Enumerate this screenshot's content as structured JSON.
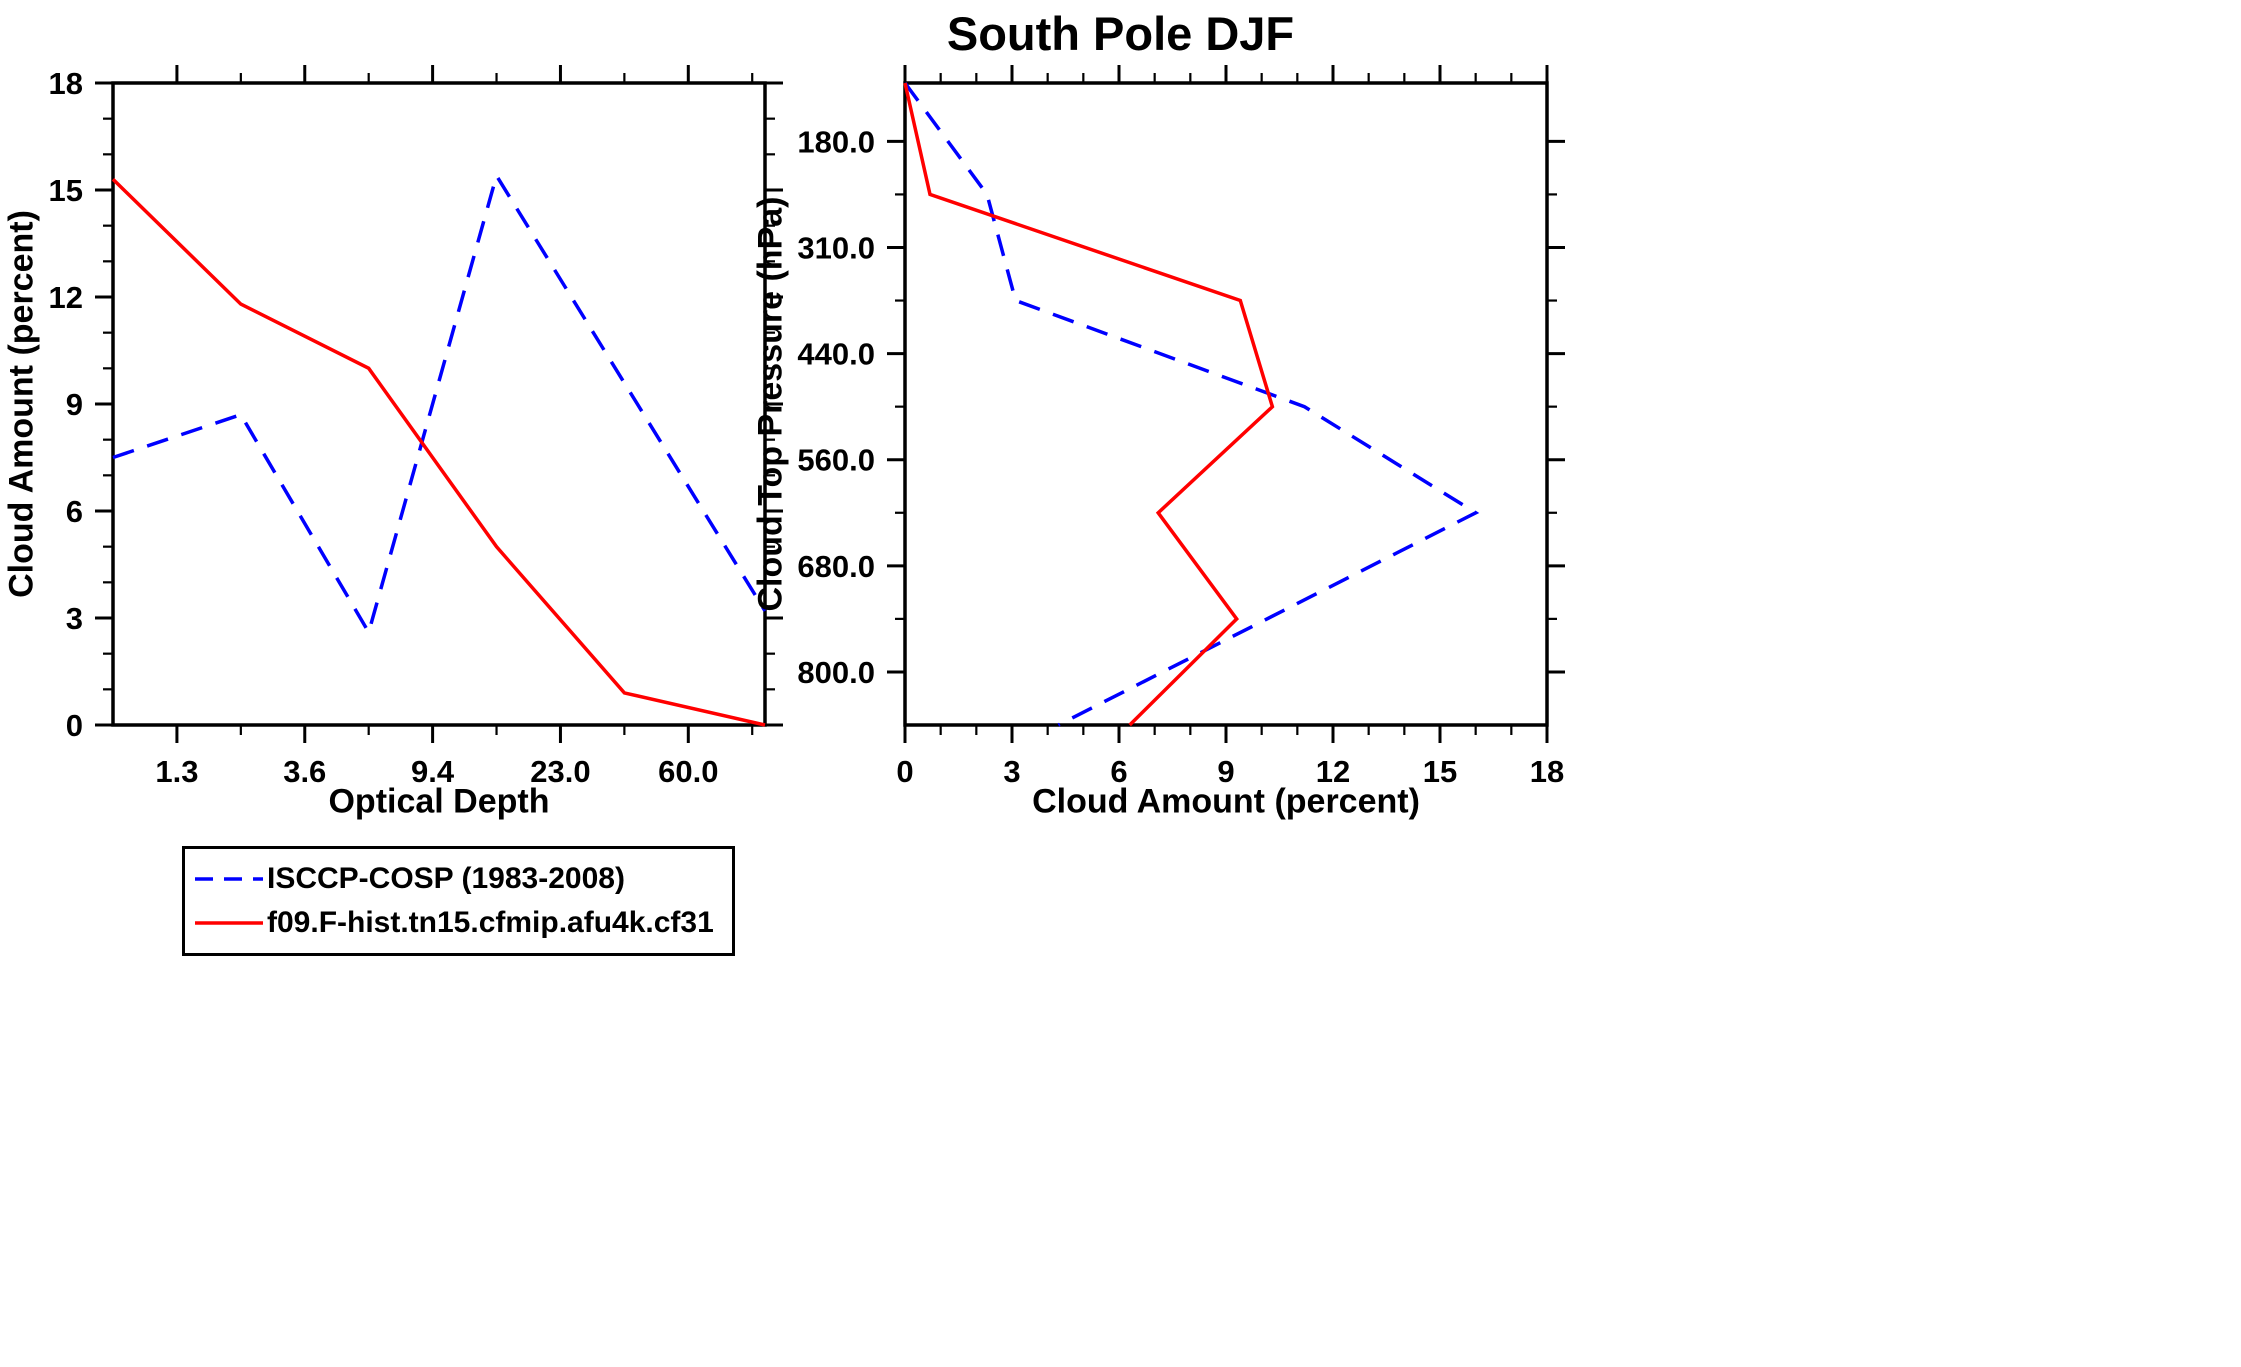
{
  "title": "South Pole DJF",
  "colors": {
    "blue": "#0000ff",
    "red": "#ff0000",
    "axis": "#000000",
    "background": "#ffffff"
  },
  "legend": {
    "entries": [
      {
        "label": "ISCCP-COSP (1983-2008)",
        "color": "#0000ff",
        "line_style": "dashed",
        "dash_pattern": "18 11"
      },
      {
        "label": "f09.F-hist.tn15.cfmip.afu4k.cf31",
        "color": "#ff0000",
        "line_style": "solid",
        "dash_pattern": "none"
      }
    ]
  },
  "chart_data": [
    {
      "type": "line",
      "panel": "left",
      "xlabel": "Optical Depth",
      "ylabel": "Cloud Amount (percent)",
      "x_axis": {
        "kind": "isccp-optical-depth-bins",
        "range": [
          0.5,
          5.6
        ],
        "tick_positions": [
          1,
          2,
          3,
          4,
          5
        ],
        "tick_labels": [
          "1.3",
          "3.6",
          "9.4",
          "23.0",
          "60.0"
        ],
        "minor_positions": [
          1.5,
          2.5,
          3.5,
          4.5,
          5.5
        ],
        "note": "ticks mark ISCCP optical-depth bin boundaries; data points plotted at bin centers"
      },
      "y_axis": {
        "range": [
          0,
          18
        ],
        "tick_positions": [
          0,
          3,
          6,
          9,
          12,
          15,
          18
        ],
        "tick_labels": [
          "0",
          "3",
          "6",
          "9",
          "12",
          "15",
          "18"
        ],
        "minor_positions": [
          1,
          2,
          4,
          5,
          7,
          8,
          10,
          11,
          13,
          14,
          16,
          17
        ],
        "inverted": false
      },
      "series": [
        {
          "name": "ISCCP-COSP (1983-2008)",
          "color": "#0000ff",
          "style": "dashed",
          "x": [
            0.5,
            1.5,
            2.5,
            3.5,
            5.6
          ],
          "y": [
            7.5,
            8.7,
            2.6,
            15.4,
            3.2
          ]
        },
        {
          "name": "f09.F-hist.tn15.cfmip.afu4k.cf31",
          "color": "#ff0000",
          "style": "solid",
          "x": [
            0.5,
            1.5,
            2.5,
            3.5,
            4.5,
            5.6
          ],
          "y": [
            15.3,
            11.8,
            10.0,
            5.0,
            0.9,
            0.0
          ]
        }
      ]
    },
    {
      "type": "line",
      "panel": "right",
      "xlabel": "Cloud Amount (percent)",
      "ylabel": "Cloud Top Pressure (hPa)",
      "x_axis": {
        "range": [
          0,
          18
        ],
        "tick_positions": [
          0,
          3,
          6,
          9,
          12,
          15,
          18
        ],
        "tick_labels": [
          "0",
          "3",
          "6",
          "9",
          "12",
          "15",
          "18"
        ],
        "minor_positions": [
          1,
          2,
          4,
          5,
          7,
          8,
          10,
          11,
          13,
          14,
          16,
          17
        ]
      },
      "y_axis": {
        "kind": "isccp-cloud-top-pressure-bins",
        "range": [
          0.45,
          6.5
        ],
        "tick_positions": [
          1,
          2,
          3,
          4,
          5,
          6
        ],
        "tick_labels": [
          "180.0",
          "310.0",
          "440.0",
          "560.0",
          "680.0",
          "800.0"
        ],
        "minor_positions": [
          1.5,
          2.5,
          3.5,
          4.5,
          5.5
        ],
        "inverted": true,
        "note": "pressure increases downward; ticks at ISCCP cloud-top-pressure bin boundaries (hPa), data at bin centers"
      },
      "series": [
        {
          "name": "ISCCP-COSP (1983-2008)",
          "color": "#0000ff",
          "style": "dashed",
          "x": [
            0.0,
            2.3,
            3.1,
            11.2,
            16.0,
            4.3
          ],
          "y": [
            0.45,
            1.5,
            2.5,
            3.5,
            4.5,
            6.5
          ]
        },
        {
          "name": "f09.F-hist.tn15.cfmip.afu4k.cf31",
          "color": "#ff0000",
          "style": "solid",
          "x": [
            0.0,
            0.7,
            9.4,
            10.3,
            7.1,
            9.3,
            6.3
          ],
          "y": [
            0.45,
            1.5,
            2.5,
            3.5,
            4.5,
            5.5,
            6.5
          ]
        }
      ]
    }
  ]
}
